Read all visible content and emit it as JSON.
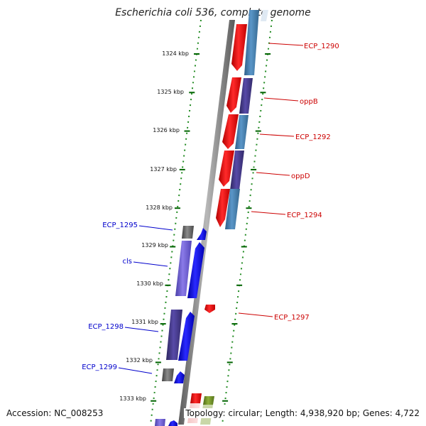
{
  "title": "Escherichia coli 536, complete genome",
  "footer": {
    "accession": "Accession: NC_008253",
    "summary": "Topology: circular; Length: 4,938,920 bp; Genes: 4,722"
  },
  "colors": {
    "forward_label": "#cc0000",
    "reverse_label": "#0000cc",
    "gene_red": "#ff0000",
    "gene_blue": "#0000ff",
    "protein_light_blue": "#4682b4",
    "protein_purple": "#483d8b",
    "protein_lavender": "#6a5acd",
    "protein_gray": "#606060",
    "protein_green": "#6b8e23",
    "ruler_green": "#006400",
    "backbone": "#808080"
  },
  "ruler_labels": [
    "1324 kbp",
    "1325 kbp",
    "1326 kbp",
    "1327 kbp",
    "1328 kbp",
    "1329 kbp",
    "1330 kbp",
    "1331 kbp",
    "1332 kbp",
    "1333 kbp"
  ],
  "forward_features": [
    {
      "gene": "ECP_1290",
      "protein": "light-blue"
    },
    {
      "gene": "oppB",
      "protein": "purple"
    },
    {
      "gene": "ECP_1292",
      "protein": "light-blue"
    },
    {
      "gene": "oppD",
      "protein": "purple"
    },
    {
      "gene": "ECP_1294",
      "protein": "light-blue"
    },
    {
      "gene": "ECP_1297",
      "protein": "none"
    }
  ],
  "reverse_features": [
    {
      "gene": "ECP_1295",
      "protein": "gray"
    },
    {
      "gene": "cls",
      "protein": "lavender"
    },
    {
      "gene": "ECP_1298",
      "protein": "purple"
    },
    {
      "gene": "ECP_1299",
      "protein": "gray"
    }
  ]
}
